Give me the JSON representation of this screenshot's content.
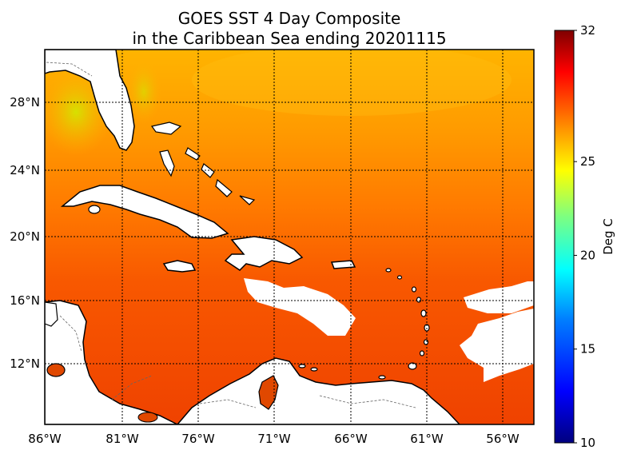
{
  "title_line1": "GOES SST 4 Day Composite",
  "title_line2": "in the Caribbean Sea ending 20201115",
  "lon_labels": [
    "86°W",
    "81°W",
    "76°W",
    "71°W",
    "66°W",
    "61°W",
    "56°W"
  ],
  "lat_labels": [
    "28°N",
    "24°N",
    "20°N",
    "16°N",
    "12°N"
  ],
  "colorbar": {
    "unit_label": "Deg C",
    "min": 10,
    "max": 32,
    "tick_labels": [
      "32",
      "25",
      "20",
      "15",
      "10"
    ],
    "colors": [
      "#00007f",
      "#0000ff",
      "#007fff",
      "#00ffff",
      "#7fff7f",
      "#ffff00",
      "#ff7f00",
      "#ff0000",
      "#7f0000"
    ]
  },
  "colors": {
    "sst_warm_north": "#ffb000",
    "sst_mid": "#ff7a00",
    "sst_caribbean": "#f24a00",
    "sst_coastal_cool": "#c8e000",
    "land": "#ffffff",
    "coast": "#000000"
  }
}
